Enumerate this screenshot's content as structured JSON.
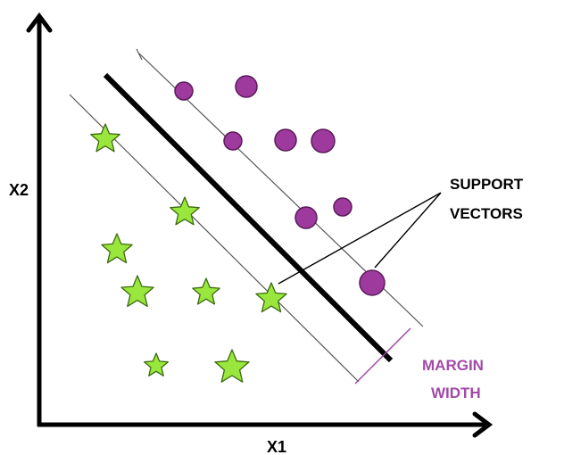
{
  "axes": {
    "x_label": "X1",
    "y_label": "X2"
  },
  "annotations": {
    "support_line1": "SUPPORT",
    "support_line2": "VECTORS",
    "margin_line1": "MARGIN",
    "margin_line2": "WIDTH"
  },
  "colors": {
    "axis": "#000000",
    "hyperplane": "#000000",
    "margin_lines": "#555555",
    "circle_fill": "#9e3a9e",
    "circle_stroke": "#5a1a5a",
    "star_fill": "#99e63d",
    "star_stroke": "#3c6b10",
    "margin_text": "#a34aa8",
    "support_text": "#000000"
  },
  "classes": {
    "circles": "circle",
    "stars": "star"
  }
}
